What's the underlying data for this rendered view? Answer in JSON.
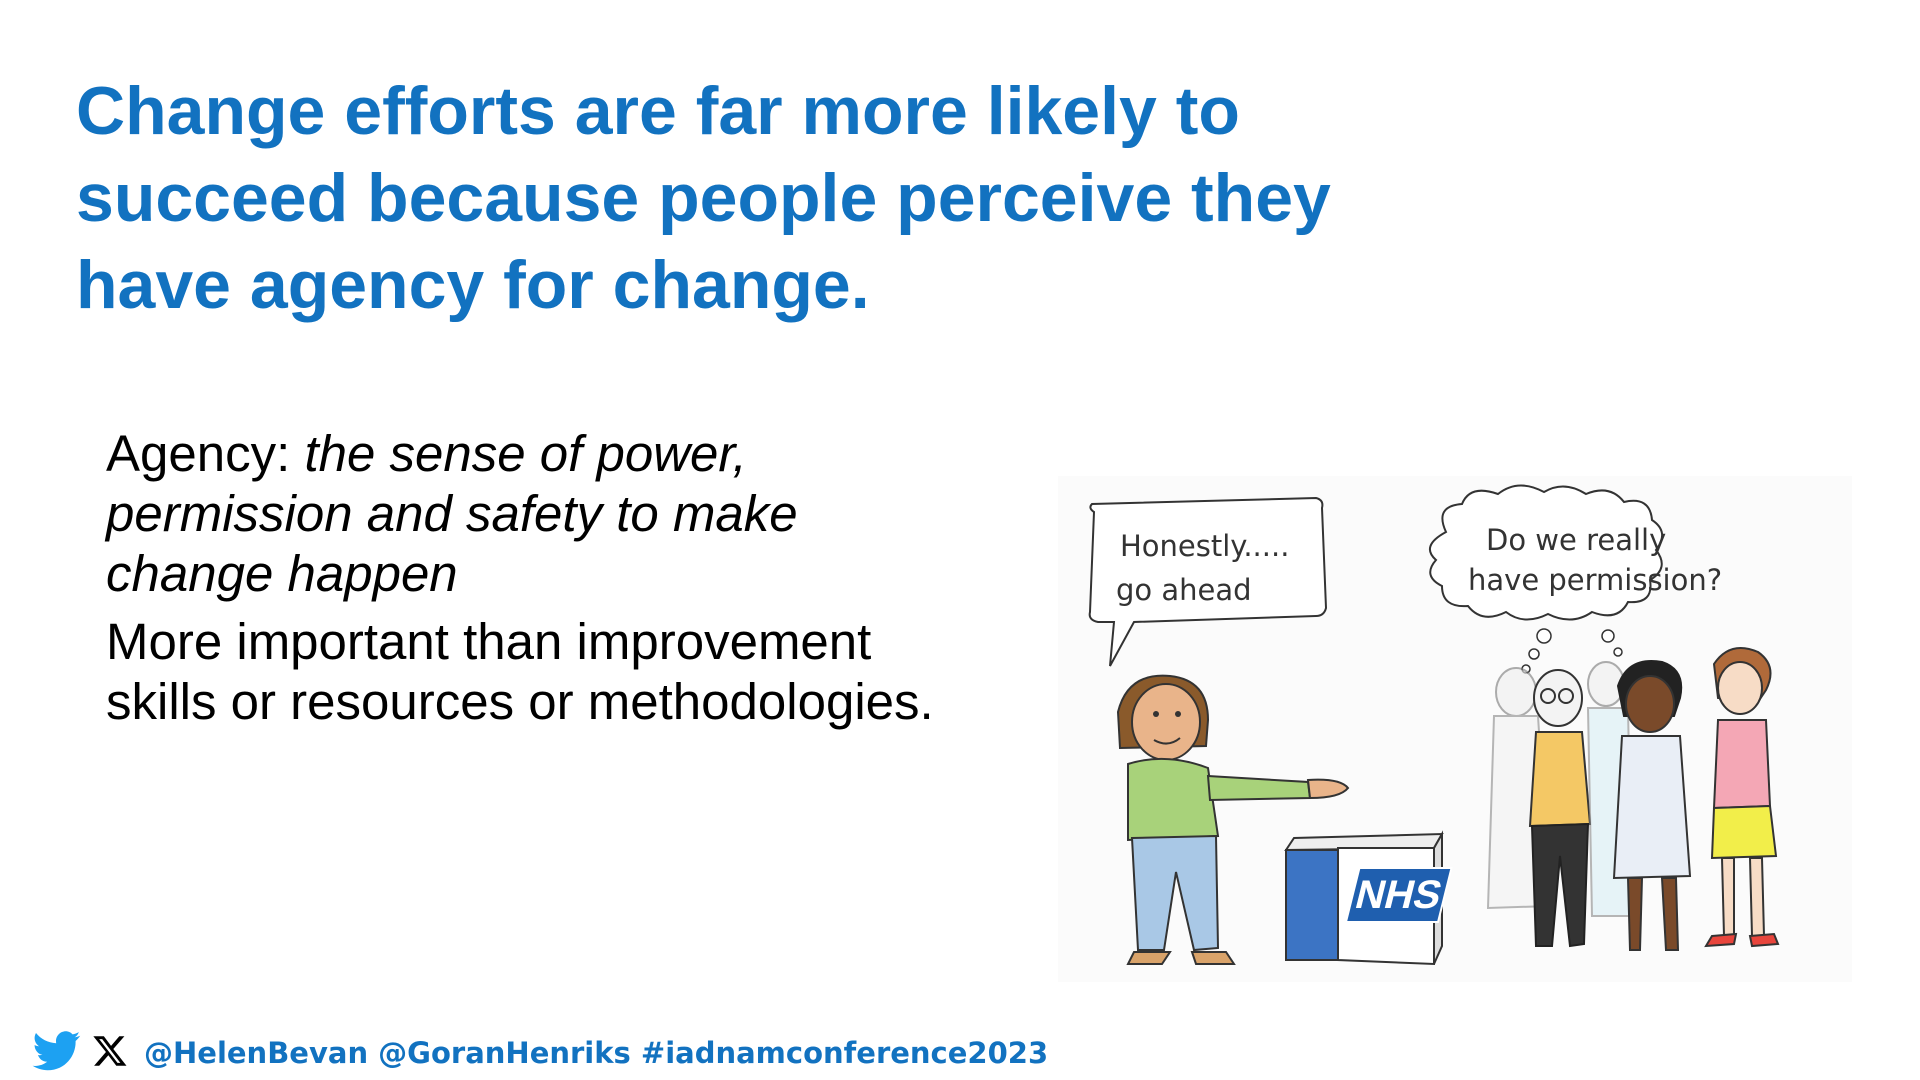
{
  "slide": {
    "title_lines": [
      "Change efforts are far more likely to",
      "succeed because people perceive they",
      "have agency for change."
    ],
    "definition": {
      "term": "Agency:",
      "text_lines": [
        "the sense of power,",
        "permission and safety to make",
        "change happen"
      ]
    },
    "statement_lines": [
      "More important than improvement",
      "skills or resources or methodologies."
    ]
  },
  "illustration": {
    "speech_bubble_lines": [
      "Honestly.....",
      "go ahead"
    ],
    "thought_bubble_lines": [
      "Do we really",
      "have permission?"
    ],
    "box_logo": "NHS"
  },
  "footer": {
    "icons": [
      "twitter-bird-icon",
      "x-logo-icon"
    ],
    "handles": "@HelenBevan @GoranHenriks #iadnamconference2023"
  },
  "colors": {
    "title": "#1272C0",
    "twitter": "#1DA1F2",
    "nhs_blue": "#1F5FAF"
  }
}
